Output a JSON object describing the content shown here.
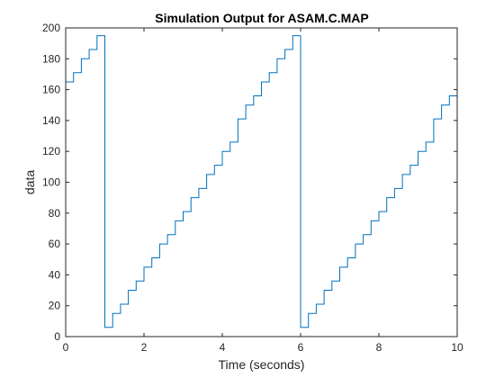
{
  "chart_data": {
    "type": "line",
    "title": "Simulation Output for ASAM.C.MAP",
    "xlabel": "Time (seconds)",
    "ylabel": "data",
    "xlim": [
      0,
      10
    ],
    "ylim": [
      0,
      200
    ],
    "xticks": [
      0,
      2,
      4,
      6,
      8,
      10
    ],
    "yticks": [
      0,
      20,
      40,
      60,
      80,
      100,
      120,
      140,
      160,
      180,
      200
    ],
    "grid": false,
    "line_style": "stairs",
    "series": [
      {
        "color": "#0072BD",
        "x": [
          0,
          0.2,
          0.4,
          0.6,
          0.8,
          1.0,
          1.2,
          1.4,
          1.6,
          1.8,
          2.0,
          2.2,
          2.4,
          2.6,
          2.8,
          3.0,
          3.2,
          3.4,
          3.6,
          3.8,
          4.0,
          4.2,
          4.4,
          4.6,
          4.8,
          5.0,
          5.2,
          5.4,
          5.6,
          5.8,
          6.0,
          6.2,
          6.4,
          6.6,
          6.8,
          7.0,
          7.2,
          7.4,
          7.6,
          7.8,
          8.0,
          8.2,
          8.4,
          8.6,
          8.8,
          9.0,
          9.2,
          9.4,
          9.6,
          9.8,
          10.0
        ],
        "y": [
          165,
          171,
          180,
          186,
          195,
          6,
          15,
          21,
          30,
          36,
          45,
          51,
          60,
          66,
          75,
          81,
          90,
          96,
          105,
          111,
          120,
          126,
          141,
          150,
          156,
          165,
          171,
          180,
          186,
          195,
          6,
          15,
          21,
          30,
          36,
          45,
          51,
          60,
          66,
          75,
          81,
          90,
          96,
          105,
          111,
          120,
          126,
          141,
          150,
          156,
          162
        ]
      }
    ]
  }
}
